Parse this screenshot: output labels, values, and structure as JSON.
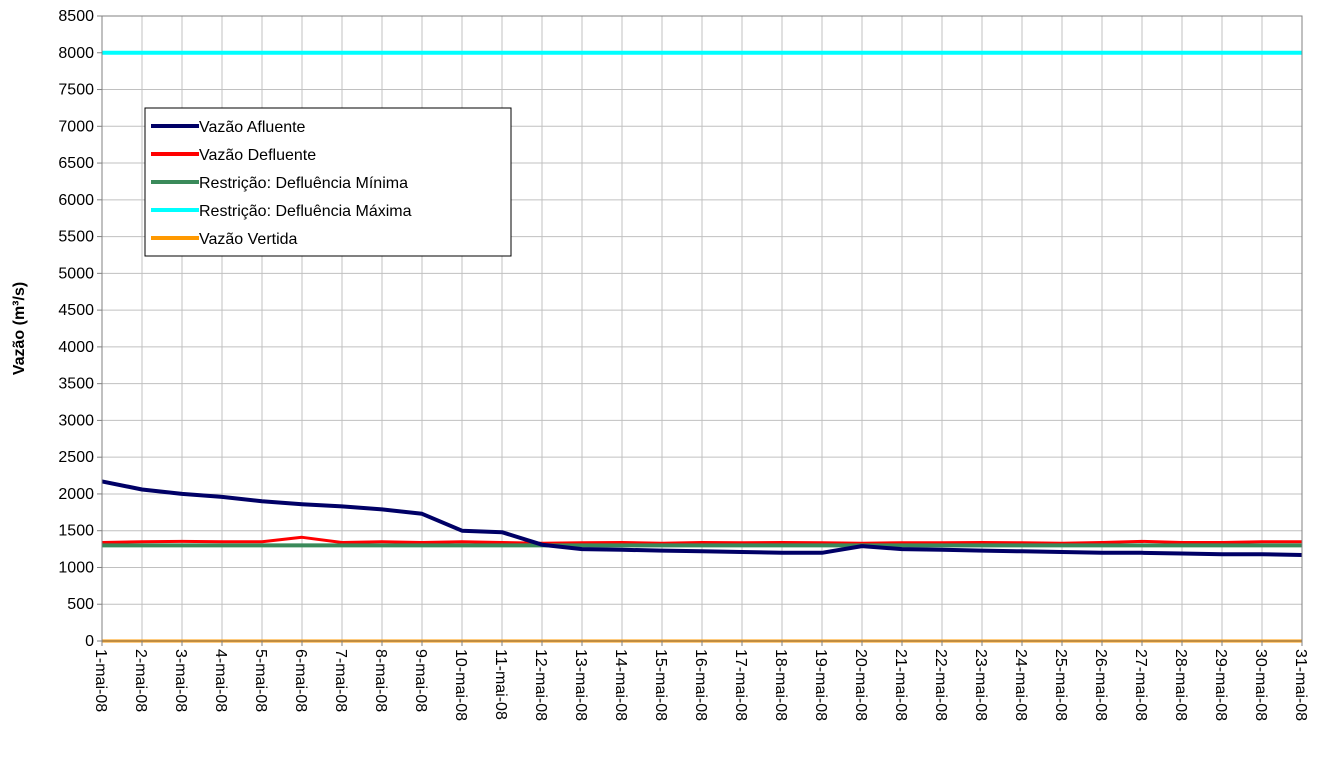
{
  "chart_data": {
    "type": "line",
    "ylabel": "Vazão (m³/s)",
    "xlabel": "",
    "ylim": [
      0,
      8500
    ],
    "ytick_step": 500,
    "grid": true,
    "legend_position": "top-left",
    "categories": [
      "1-mai-08",
      "2-mai-08",
      "3-mai-08",
      "4-mai-08",
      "5-mai-08",
      "6-mai-08",
      "7-mai-08",
      "8-mai-08",
      "9-mai-08",
      "10-mai-08",
      "11-mai-08",
      "12-mai-08",
      "13-mai-08",
      "14-mai-08",
      "15-mai-08",
      "16-mai-08",
      "17-mai-08",
      "18-mai-08",
      "19-mai-08",
      "20-mai-08",
      "21-mai-08",
      "22-mai-08",
      "23-mai-08",
      "24-mai-08",
      "25-mai-08",
      "26-mai-08",
      "27-mai-08",
      "28-mai-08",
      "29-mai-08",
      "30-mai-08",
      "31-mai-08"
    ],
    "series": [
      {
        "name": "Vazão Afluente",
        "color": "#000066",
        "width": 4,
        "values": [
          2170,
          2060,
          2000,
          1960,
          1900,
          1860,
          1830,
          1790,
          1730,
          1500,
          1480,
          1310,
          1250,
          1240,
          1230,
          1220,
          1210,
          1200,
          1200,
          1290,
          1250,
          1240,
          1230,
          1220,
          1210,
          1200,
          1200,
          1190,
          1180,
          1180,
          1170
        ]
      },
      {
        "name": "Vazão Defluente",
        "color": "#ff0000",
        "width": 3,
        "values": [
          1340,
          1350,
          1355,
          1350,
          1350,
          1410,
          1340,
          1350,
          1340,
          1350,
          1340,
          1330,
          1335,
          1340,
          1330,
          1340,
          1335,
          1340,
          1335,
          1330,
          1335,
          1335,
          1340,
          1335,
          1330,
          1340,
          1355,
          1340,
          1340,
          1350,
          1350
        ]
      },
      {
        "name": "Restrição: Defluência Mínima",
        "color": "#3a8a5a",
        "width": 4,
        "values": [
          1300,
          1300,
          1300,
          1300,
          1300,
          1300,
          1300,
          1300,
          1300,
          1300,
          1300,
          1300,
          1300,
          1300,
          1300,
          1300,
          1300,
          1300,
          1300,
          1300,
          1300,
          1300,
          1300,
          1300,
          1300,
          1300,
          1300,
          1300,
          1300,
          1300,
          1300
        ]
      },
      {
        "name": "Restrição: Defluência Máxima",
        "color": "#00ffff",
        "width": 4,
        "values": [
          8000,
          8000,
          8000,
          8000,
          8000,
          8000,
          8000,
          8000,
          8000,
          8000,
          8000,
          8000,
          8000,
          8000,
          8000,
          8000,
          8000,
          8000,
          8000,
          8000,
          8000,
          8000,
          8000,
          8000,
          8000,
          8000,
          8000,
          8000,
          8000,
          8000,
          8000
        ]
      },
      {
        "name": "Vazão Vertida",
        "color": "#ff9900",
        "width": 3,
        "values": [
          0,
          0,
          0,
          0,
          0,
          0,
          0,
          0,
          0,
          0,
          0,
          0,
          0,
          0,
          0,
          0,
          0,
          0,
          0,
          0,
          0,
          0,
          0,
          0,
          0,
          0,
          0,
          0,
          0,
          0,
          0
        ]
      }
    ]
  }
}
